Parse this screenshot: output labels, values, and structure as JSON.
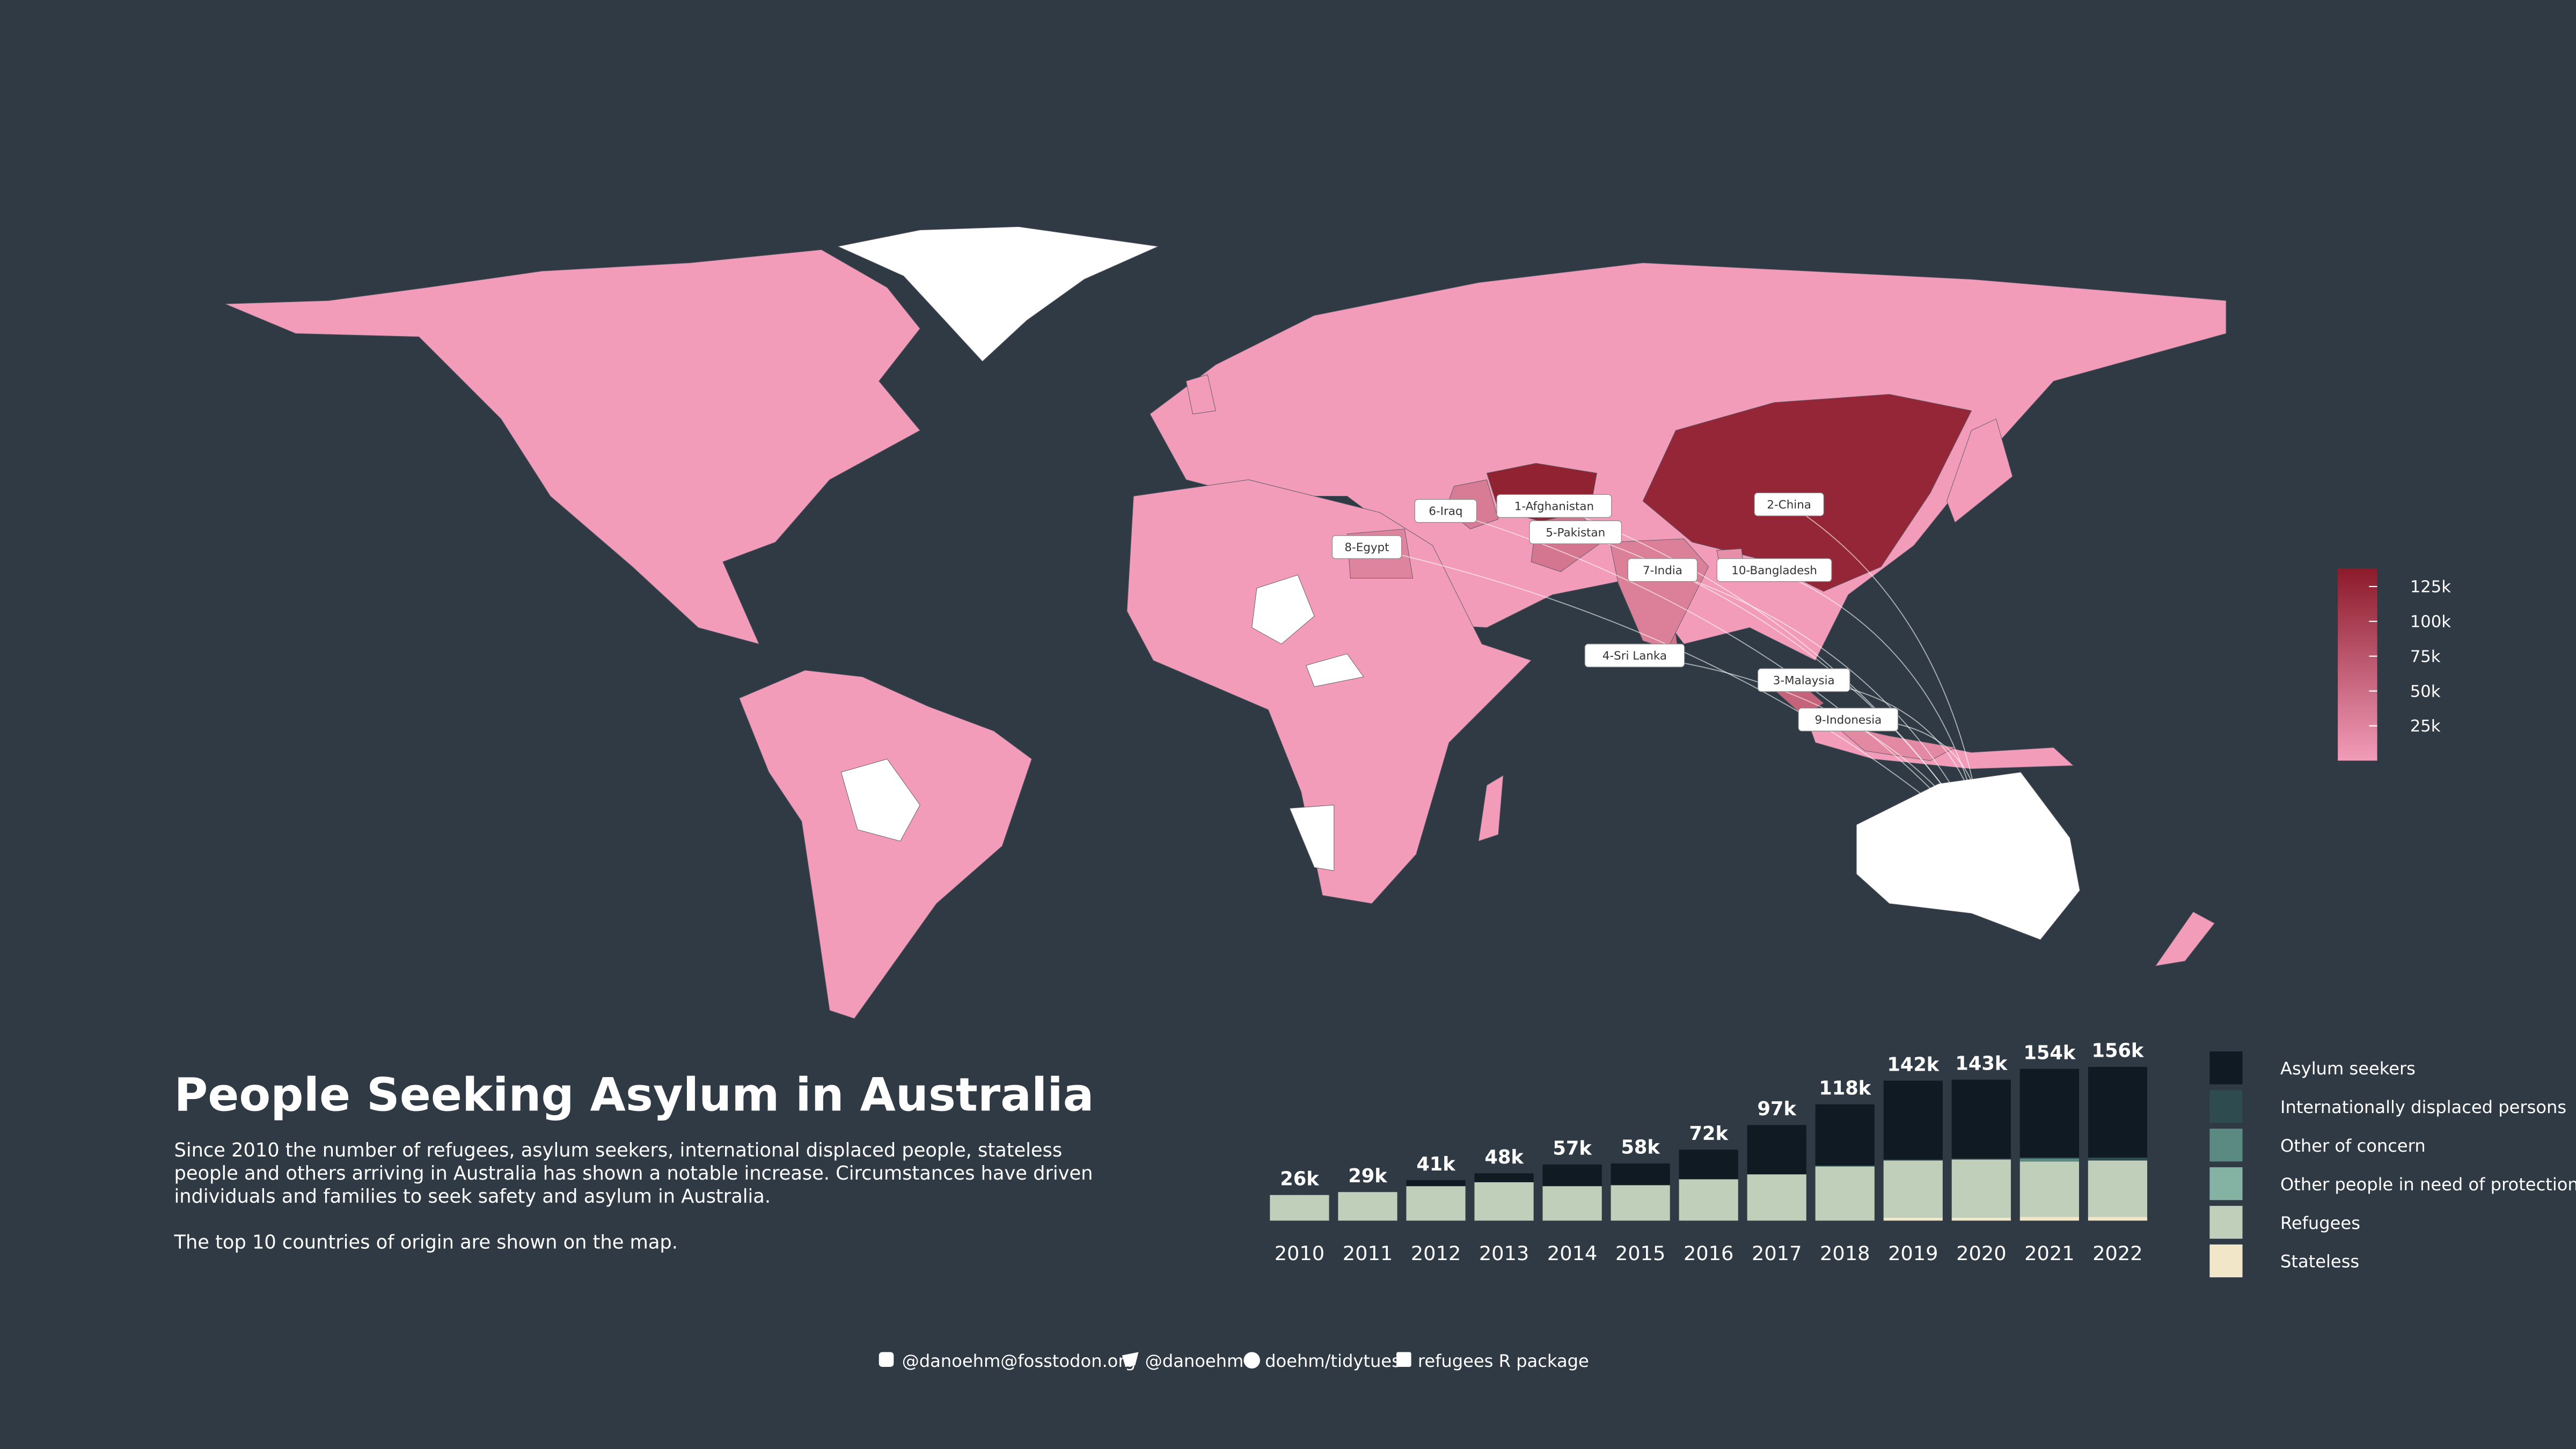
{
  "title": "People Seeking Asylum in Australia",
  "description": [
    "Since 2010 the number of refugees, asylum seekers, international displaced people, stateless",
    "people and others arriving in Australia has shown a notable increase. Circumstances have driven",
    "individuals and families to seek safety and asylum in Australia.",
    "The top 10 countries of origin are shown on the map."
  ],
  "footer": [
    "@danoehm@fosstodon.org",
    "@danoehm",
    "doehm/tidytues",
    "refugees R package"
  ],
  "chart_data": [
    {
      "type": "map",
      "countries": {
        "labels": [
          "1-Afghanistan",
          "2-China",
          "3-Malaysia",
          "4-Sri Lanka",
          "5-Pakistan",
          "6-Iraq",
          "7-India",
          "8-Egypt",
          "9-Indonesia",
          "10-Bangladesh"
        ],
        "values": [
          130000,
          125000,
          60000,
          45000,
          40000,
          35000,
          30000,
          25000,
          20000,
          15000
        ]
      },
      "colorbar": {
        "clim": [
          0,
          138000
        ],
        "colors": [
          "#f29cb9",
          "#8b1a2a"
        ],
        "ticks": [
          {
            "value": 25000,
            "label": "25k"
          },
          {
            "value": 50000,
            "label": "50k"
          },
          {
            "value": 75000,
            "label": "75k"
          },
          {
            "value": 100000,
            "label": "100k"
          },
          {
            "value": 125000,
            "label": "125k"
          }
        ]
      }
    },
    {
      "type": "stacked-bar",
      "categories": [
        "2010",
        "2011",
        "2012",
        "2013",
        "2014",
        "2015",
        "2016",
        "2017",
        "2018",
        "2019",
        "2020",
        "2021",
        "2022"
      ],
      "series": [
        {
          "name": "Stateless",
          "color": "#f2e6c8",
          "values": [
            0,
            0,
            0,
            0,
            0,
            0,
            0,
            0,
            0,
            3000,
            3000,
            4000,
            4000
          ]
        },
        {
          "name": "Refugees",
          "color": "#bfcfb9",
          "values": [
            26000,
            29000,
            35000,
            39000,
            35000,
            36000,
            42000,
            47000,
            55000,
            58000,
            59000,
            56000,
            57000
          ]
        },
        {
          "name": "Other people in need of protection",
          "color": "#84b3a4",
          "values": [
            0,
            0,
            0,
            0,
            0,
            0,
            0,
            0,
            0,
            0,
            0,
            0,
            0
          ]
        },
        {
          "name": "Other of concern",
          "color": "#5a8a82",
          "values": [
            0,
            0,
            0,
            0,
            0,
            0,
            0,
            0,
            0,
            0,
            0,
            3000,
            0
          ]
        },
        {
          "name": "Internationally displaced persons",
          "color": "#2e4c50",
          "values": [
            0,
            0,
            0,
            0,
            0,
            0,
            0,
            0,
            1000,
            1000,
            1000,
            1000,
            3000
          ]
        },
        {
          "name": "Asylum seekers",
          "color": "#0f1a22",
          "values": [
            0,
            0,
            6000,
            9000,
            22000,
            22000,
            30000,
            50000,
            62000,
            80000,
            80000,
            90000,
            92000
          ]
        }
      ],
      "totals": {
        "values": [
          26000,
          29000,
          41000,
          48000,
          57000,
          58000,
          72000,
          97000,
          118000,
          142000,
          143000,
          154000,
          156000
        ],
        "value_labels": [
          "26k",
          "29k",
          "41k",
          "48k",
          "57k",
          "58k",
          "72k",
          "97k",
          "118k",
          "142k",
          "143k",
          "154k",
          "156k"
        ]
      }
    }
  ]
}
